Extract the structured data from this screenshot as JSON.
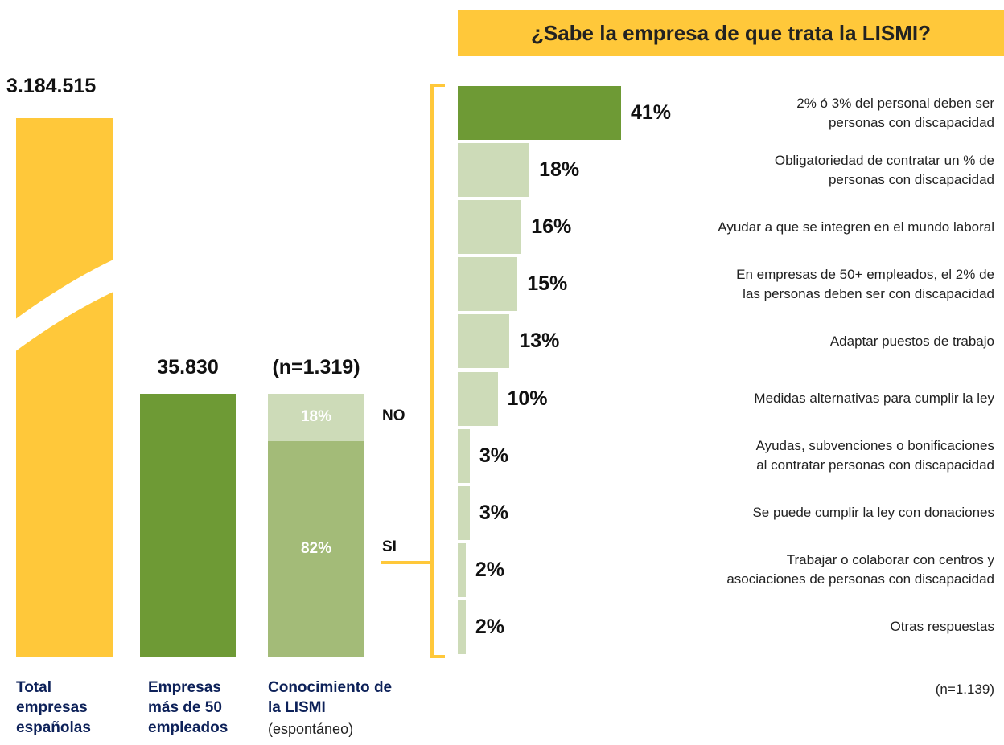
{
  "chart_data": [
    {
      "type": "column-comparison",
      "columns": [
        {
          "name": "Total empresas españolas",
          "value": 3184515,
          "value_label": "3.184.515",
          "color": "#ffc83a",
          "broken": true
        },
        {
          "name": "Empresas más de 50 empleados",
          "value": 35830,
          "value_label": "35.830",
          "color": "#6e9a35"
        }
      ],
      "stack": {
        "name": "Conocimiento de la LISMI",
        "subtitle": "(espontáneo)",
        "sample": "(n=1.319)",
        "series": [
          {
            "name": "SI",
            "color": "#a3bb78",
            "values": [
              82
            ],
            "value_labels": [
              "82%"
            ]
          },
          {
            "name": "NO",
            "color": "#cddbb8",
            "values": [
              18
            ],
            "value_labels": [
              "18%"
            ]
          }
        ]
      }
    },
    {
      "type": "bar",
      "orientation": "horizontal",
      "title": "¿Sabe la empresa de que trata la LISMI?",
      "categories": [
        "2% ó 3% del personal deben ser\npersonas con discapacidad",
        "Obligatoriedad de contratar un % de\npersonas con discapacidad",
        "Ayudar a que se integren en el mundo laboral",
        "En empresas de 50+ empleados, el 2% de\nlas personas deben ser con discapacidad",
        "Adaptar puestos de trabajo",
        "Medidas alternativas para cumplir la ley",
        "Ayudas, subvenciones o bonificaciones\nal contratar personas con discapacidad",
        "Se puede cumplir la ley con donaciones",
        "Trabajar o colaborar con centros y\nasociaciones de personas con discapacidad",
        "Otras respuestas"
      ],
      "values": [
        41,
        18,
        16,
        15,
        13,
        10,
        3,
        3,
        2,
        2
      ],
      "value_labels": [
        "41%",
        "18%",
        "16%",
        "15%",
        "13%",
        "10%",
        "3%",
        "3%",
        "2%",
        "2%"
      ],
      "colors": [
        "#6e9a35",
        "#cddbb8",
        "#cddbb8",
        "#cddbb8",
        "#cddbb8",
        "#cddbb8",
        "#cddbb8",
        "#cddbb8",
        "#cddbb8",
        "#cddbb8"
      ],
      "note": "(n=1.139)"
    }
  ]
}
